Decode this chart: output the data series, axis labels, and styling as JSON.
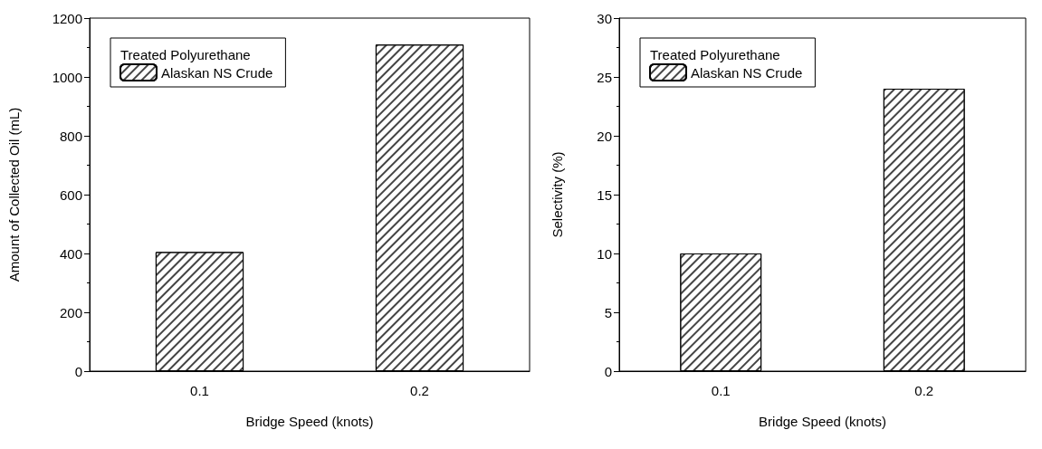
{
  "chart_data": [
    {
      "type": "bar",
      "categories": [
        "0.1",
        "0.2"
      ],
      "xlabel": "Bridge Speed (knots)",
      "ylabel": "Amount of Collected Oil (mL)",
      "legend_title": "Treated Polyurethane",
      "legend": "top left",
      "ylim": [
        0,
        1200
      ],
      "yticks": [
        0,
        200,
        400,
        600,
        800,
        1000,
        1200
      ],
      "grid": false,
      "series": [
        {
          "name": "Alaskan NS Crude",
          "color": "#ffffff",
          "values": [
            405,
            1110
          ]
        }
      ]
    },
    {
      "type": "bar",
      "categories": [
        "0.1",
        "0.2"
      ],
      "xlabel": "Bridge Speed (knots)",
      "ylabel": "Selectivity (%)",
      "legend_title": "Treated Polyurethane",
      "legend": "top left",
      "ylim": [
        0,
        30
      ],
      "yticks": [
        0,
        5,
        10,
        15,
        20,
        25,
        30
      ],
      "grid": false,
      "series": [
        {
          "name": "Alaskan NS Crude",
          "color": "#ffffff",
          "values": [
            10,
            24
          ]
        }
      ]
    }
  ]
}
